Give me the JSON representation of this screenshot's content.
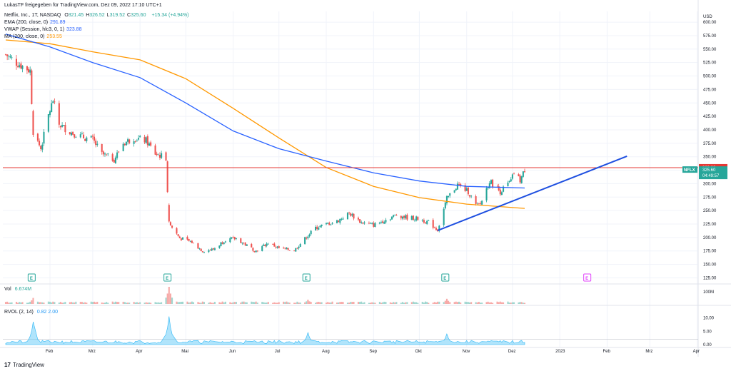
{
  "header": {
    "shared_by": "LukasTF freigegeben für TradingView.com, Dez 09, 2022 17:10 UTC+1",
    "symbol_title": "Netflix, Inc., 1T, NASDAQ",
    "ohlc": [
      {
        "k": "O",
        "v": "321.45"
      },
      {
        "k": "H",
        "v": "326.52"
      },
      {
        "k": "L",
        "v": "319.52"
      },
      {
        "k": "C",
        "v": "325.60"
      }
    ],
    "change": "+15.34 (+4.94%)",
    "indicators": [
      {
        "label": "EMA (200, close, 0)",
        "value": "291.89",
        "color": "#2962ff"
      },
      {
        "label": "VWAP (Session, hlc3, 0, 1)",
        "value": "323.88",
        "color": "#2962ff"
      },
      {
        "label": "MA (200, close, 0)",
        "value": "253.55",
        "color": "#ff9800"
      }
    ],
    "vol_label": "Vol",
    "vol_value": "6.674M",
    "rvol_label": "RVOL (2, 14)",
    "rvol_values": "0.82  2.00"
  },
  "footer": {
    "brand": "TradingView"
  },
  "colors": {
    "up": "#26a69a",
    "down": "#ef5350",
    "ema": "#2962ff",
    "ma": "#ff9800",
    "hline": "#e53935",
    "trend": "#1e4fe0",
    "grid": "#f0f3fa",
    "ticker_bg": "#26a69a"
  },
  "chart_data": {
    "type": "candlestick",
    "symbol": "NFLX",
    "currency": "USD",
    "y_ticks": [
      "600.00",
      "575.00",
      "550.00",
      "525.00",
      "500.00",
      "475.00",
      "450.00",
      "425.00",
      "400.00",
      "375.00",
      "350.00",
      "325.00",
      "300.00",
      "275.00",
      "250.00",
      "225.00",
      "200.00",
      "175.00",
      "150.00",
      "125.00"
    ],
    "ylim": [
      115,
      620
    ],
    "x_ticks": [
      "Feb",
      "Mrz",
      "Apr",
      "Mai",
      "Jun",
      "Jul",
      "Aug",
      "Sep",
      "Okt",
      "Nov",
      "Dez",
      "2023",
      "Feb",
      "Mrz",
      "Apr"
    ],
    "price_labels": {
      "hline_value": "329.82",
      "last_price": "325.60",
      "countdown": "04:49:57",
      "ticker": "NFLX"
    },
    "horizontal_line": 329.8,
    "trendline": [
      {
        "date": "2022-10-13",
        "price": 213
      },
      {
        "date": "2023-02-14",
        "price": 351
      }
    ],
    "close_path": [
      [
        "2022-01-03",
        540
      ],
      [
        "2022-01-10",
        525
      ],
      [
        "2022-01-19",
        510
      ],
      [
        "2022-01-21",
        397
      ],
      [
        "2022-01-26",
        365
      ],
      [
        "2022-01-31",
        427
      ],
      [
        "2022-02-03",
        455
      ],
      [
        "2022-02-07",
        410
      ],
      [
        "2022-02-15",
        395
      ],
      [
        "2022-02-24",
        385
      ],
      [
        "2022-03-01",
        382
      ],
      [
        "2022-03-07",
        355
      ],
      [
        "2022-03-15",
        345
      ],
      [
        "2022-03-21",
        375
      ],
      [
        "2022-03-28",
        385
      ],
      [
        "2022-04-05",
        380
      ],
      [
        "2022-04-11",
        356
      ],
      [
        "2022-04-18",
        348
      ],
      [
        "2022-04-20",
        226
      ],
      [
        "2022-04-27",
        199
      ],
      [
        "2022-05-05",
        191
      ],
      [
        "2022-05-12",
        175
      ],
      [
        "2022-05-19",
        178
      ],
      [
        "2022-05-27",
        196
      ],
      [
        "2022-06-03",
        198
      ],
      [
        "2022-06-10",
        185
      ],
      [
        "2022-06-16",
        175
      ],
      [
        "2022-06-24",
        190
      ],
      [
        "2022-07-01",
        180
      ],
      [
        "2022-07-11",
        176
      ],
      [
        "2022-07-19",
        201
      ],
      [
        "2022-07-25",
        218
      ],
      [
        "2022-08-02",
        225
      ],
      [
        "2022-08-08",
        230
      ],
      [
        "2022-08-16",
        245
      ],
      [
        "2022-08-24",
        228
      ],
      [
        "2022-09-01",
        223
      ],
      [
        "2022-09-09",
        233
      ],
      [
        "2022-09-16",
        242
      ],
      [
        "2022-09-23",
        237
      ],
      [
        "2022-09-30",
        235
      ],
      [
        "2022-10-07",
        228
      ],
      [
        "2022-10-13",
        214
      ],
      [
        "2022-10-19",
        272
      ],
      [
        "2022-10-26",
        298
      ],
      [
        "2022-11-02",
        285
      ],
      [
        "2022-11-07",
        260
      ],
      [
        "2022-11-10",
        262
      ],
      [
        "2022-11-16",
        305
      ],
      [
        "2022-11-23",
        285
      ],
      [
        "2022-11-30",
        305
      ],
      [
        "2022-12-02",
        320
      ],
      [
        "2022-12-06",
        306
      ],
      [
        "2022-12-09",
        325.6
      ]
    ],
    "ema_200": [
      [
        "2022-01-03",
        578
      ],
      [
        "2022-02-01",
        554
      ],
      [
        "2022-03-01",
        525
      ],
      [
        "2022-04-01",
        497
      ],
      [
        "2022-05-01",
        450
      ],
      [
        "2022-06-01",
        398
      ],
      [
        "2022-07-01",
        365
      ],
      [
        "2022-08-01",
        342
      ],
      [
        "2022-09-01",
        320
      ],
      [
        "2022-10-01",
        305
      ],
      [
        "2022-11-01",
        295
      ],
      [
        "2022-12-09",
        292
      ]
    ],
    "ma_200": [
      [
        "2022-01-03",
        567
      ],
      [
        "2022-02-01",
        560
      ],
      [
        "2022-03-01",
        545
      ],
      [
        "2022-04-01",
        530
      ],
      [
        "2022-05-01",
        495
      ],
      [
        "2022-06-01",
        440
      ],
      [
        "2022-07-01",
        385
      ],
      [
        "2022-08-01",
        330
      ],
      [
        "2022-09-01",
        295
      ],
      [
        "2022-10-01",
        274
      ],
      [
        "2022-11-01",
        262
      ],
      [
        "2022-12-09",
        254
      ]
    ],
    "earnings_dates": [
      {
        "date": "2022-01-20",
        "status": "past"
      },
      {
        "date": "2022-04-19",
        "status": "past"
      },
      {
        "date": "2022-07-19",
        "status": "past"
      },
      {
        "date": "2022-10-18",
        "status": "past"
      },
      {
        "date": "2023-01-19",
        "status": "upcoming"
      }
    ],
    "volume": {
      "y_ticks": [
        "100M"
      ],
      "spikes": [
        [
          "2022-01-21",
          0.35
        ],
        [
          "2022-04-20",
          1.0
        ],
        [
          "2022-07-20",
          0.25
        ],
        [
          "2022-10-19",
          0.3
        ]
      ]
    },
    "rvol": {
      "y_ticks": [
        "10.00",
        "5.00",
        "0.00"
      ],
      "ylim": [
        0,
        12
      ],
      "spikes": [
        [
          "2022-01-21",
          8.5
        ],
        [
          "2022-04-20",
          10.5
        ],
        [
          "2022-07-20",
          4.5
        ],
        [
          "2022-10-19",
          4.0
        ]
      ]
    }
  }
}
